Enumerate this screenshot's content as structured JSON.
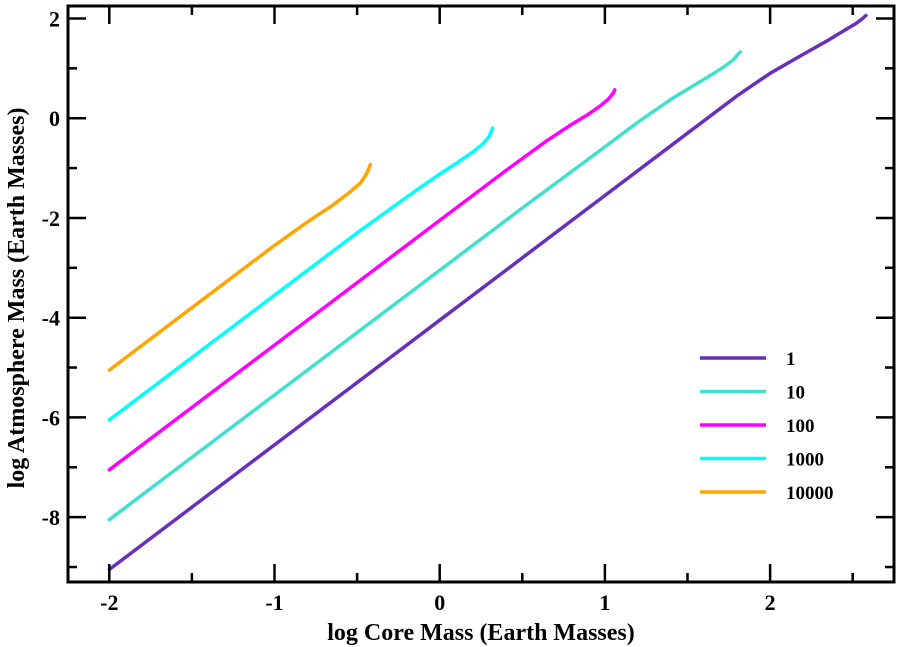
{
  "chart_data": {
    "type": "line",
    "title": "",
    "xlabel": "log Core Mass (Earth Masses)",
    "ylabel": "log Atmosphere Mass (Earth Masses)",
    "xlim": [
      -2.25,
      2.75
    ],
    "ylim": [
      -9.3,
      2.25
    ],
    "x_major_ticks": [
      -2,
      -1,
      0,
      1,
      2
    ],
    "x_tick_labels": [
      "-2",
      "-1",
      "0",
      "1",
      "2"
    ],
    "x_minor_ticks": [
      -1.5,
      -0.5,
      0.5,
      1.5,
      2.5
    ],
    "y_major_ticks": [
      -8,
      -6,
      -4,
      -2,
      0,
      2
    ],
    "y_tick_labels": [
      "-8",
      "-6",
      "-4",
      "-2",
      "0",
      "2"
    ],
    "y_minor_ticks": [
      -9,
      -7,
      -5,
      -3,
      -1,
      1
    ],
    "grid": false,
    "legend_position": "bottom-right",
    "series": [
      {
        "name": "1",
        "color": "#6a2fba",
        "points": [
          [
            -2.0,
            -9.05
          ],
          [
            -1.0,
            -6.55
          ],
          [
            0.0,
            -4.05
          ],
          [
            1.0,
            -1.55
          ],
          [
            1.5,
            -0.3
          ],
          [
            1.8,
            0.45
          ],
          [
            2.0,
            0.9
          ],
          [
            2.2,
            1.28
          ],
          [
            2.35,
            1.56
          ],
          [
            2.45,
            1.76
          ],
          [
            2.52,
            1.9
          ],
          [
            2.56,
            2.0
          ],
          [
            2.58,
            2.06
          ]
        ]
      },
      {
        "name": "10",
        "color": "#40e0d0",
        "points": [
          [
            -2.0,
            -8.05
          ],
          [
            -1.0,
            -5.55
          ],
          [
            0.0,
            -3.05
          ],
          [
            0.5,
            -1.8
          ],
          [
            0.9,
            -0.82
          ],
          [
            1.2,
            -0.08
          ],
          [
            1.4,
            0.38
          ],
          [
            1.55,
            0.68
          ],
          [
            1.65,
            0.88
          ],
          [
            1.73,
            1.05
          ],
          [
            1.78,
            1.18
          ],
          [
            1.81,
            1.3
          ],
          [
            1.82,
            1.33
          ]
        ]
      },
      {
        "name": "100",
        "color": "#ff00ff",
        "points": [
          [
            -2.0,
            -7.05
          ],
          [
            -1.0,
            -4.55
          ],
          [
            0.0,
            -2.05
          ],
          [
            0.4,
            -1.05
          ],
          [
            0.65,
            -0.45
          ],
          [
            0.8,
            -0.12
          ],
          [
            0.9,
            0.08
          ],
          [
            0.97,
            0.24
          ],
          [
            1.02,
            0.38
          ],
          [
            1.05,
            0.5
          ],
          [
            1.06,
            0.57
          ]
        ]
      },
      {
        "name": "1000",
        "color": "#00ffff",
        "points": [
          [
            -2.0,
            -6.05
          ],
          [
            -1.0,
            -3.55
          ],
          [
            -0.5,
            -2.3
          ],
          [
            -0.2,
            -1.58
          ],
          [
            0.0,
            -1.12
          ],
          [
            0.12,
            -0.86
          ],
          [
            0.2,
            -0.68
          ],
          [
            0.26,
            -0.52
          ],
          [
            0.3,
            -0.36
          ],
          [
            0.32,
            -0.2
          ]
        ]
      },
      {
        "name": "10000",
        "color": "#ffa500",
        "points": [
          [
            -2.0,
            -5.05
          ],
          [
            -1.5,
            -3.8
          ],
          [
            -1.0,
            -2.55
          ],
          [
            -0.8,
            -2.08
          ],
          [
            -0.65,
            -1.75
          ],
          [
            -0.55,
            -1.5
          ],
          [
            -0.48,
            -1.3
          ],
          [
            -0.44,
            -1.1
          ],
          [
            -0.42,
            -0.93
          ]
        ]
      }
    ]
  }
}
